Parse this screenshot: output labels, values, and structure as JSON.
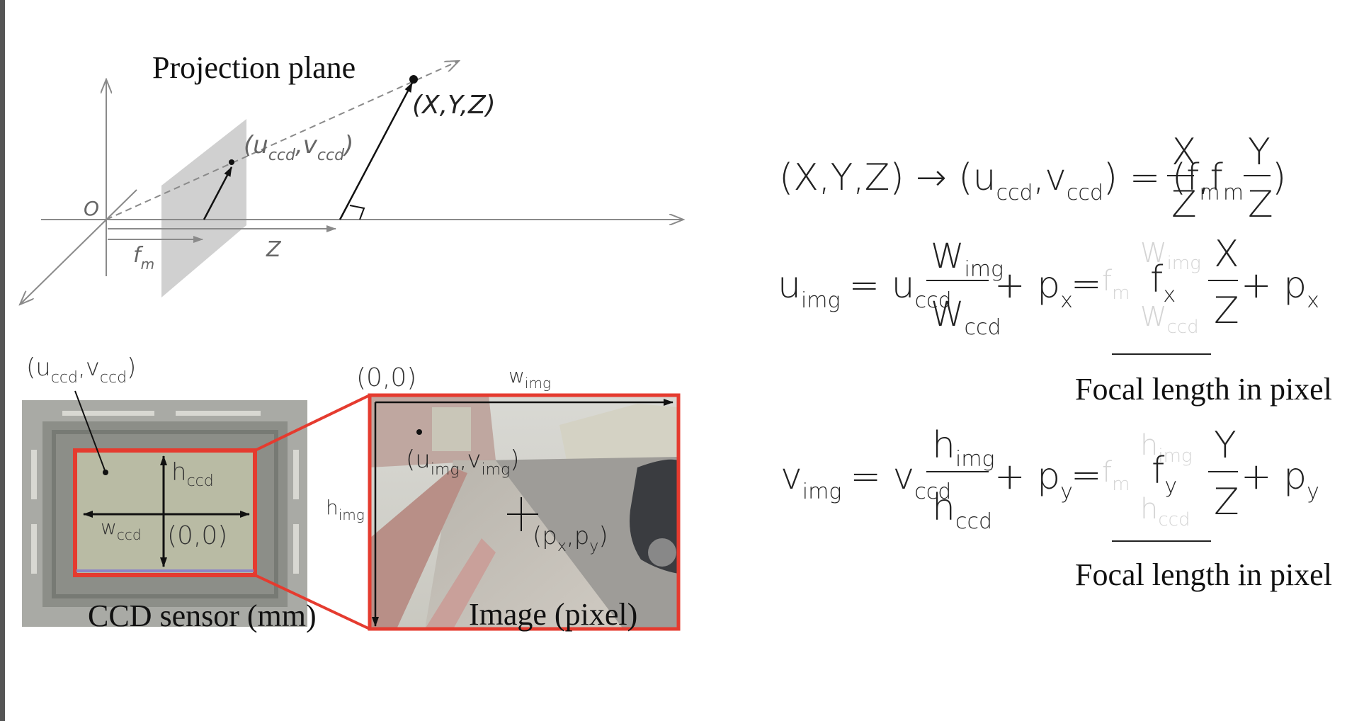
{
  "diagram": {
    "projection": {
      "title": "Projection plane",
      "origin_label": "O",
      "point_label": "(X,Y,Z)",
      "ccd_point_label": "(u",
      "ccd_u_sub": "ccd",
      "ccd_v": ",v",
      "ccd_v_sub": "ccd",
      "ccd_close": ")",
      "fm_label": "f",
      "fm_sub": "m",
      "z_label": "Z"
    },
    "ccd_sensor": {
      "corner_label": "(u",
      "corner_u_sub": "ccd",
      "corner_v": ",v",
      "corner_v_sub": "ccd",
      "corner_close": ")",
      "h_label": "h",
      "h_sub": "ccd",
      "w_label": "w",
      "w_sub": "ccd",
      "origin_label": "(0,0)",
      "caption": "CCD sensor (mm)"
    },
    "image": {
      "origin_label": "(0,0)",
      "w_label": "w",
      "w_sub": "img",
      "h_label": "h",
      "h_sub": "img",
      "point_label": "(u",
      "point_u_sub": "img",
      "point_v": ",v",
      "point_v_sub": "img",
      "point_close": ")",
      "pp_label": "(p",
      "pp_x_sub": "x",
      "pp_mid": ",p",
      "pp_y_sub": "y",
      "pp_close": ")",
      "caption": "Image (pixel)"
    },
    "equations": {
      "eq1_left": "(X,Y,Z) → (u",
      "eq1_sub1": "ccd",
      "eq1_mid": ",v",
      "eq1_sub2": "ccd",
      "eq1_eq": ") = (f",
      "eq1_fm_sub": "m",
      "eq1_X": "X",
      "eq1_Z1": "Z",
      "eq1_comma": ",f",
      "eq1_fm2_sub": "m",
      "eq1_Y": "Y",
      "eq1_Z2": "Z",
      "eq1_close": ")",
      "u_var": "u",
      "u_sub": "img",
      "u_eq": "= u",
      "u_ccd_sub": "ccd",
      "u_num": "W",
      "u_num_sub": "img",
      "u_den": "W",
      "u_den_sub": "ccd",
      "u_plus": "+ p",
      "u_p_sub": "x",
      "u_eq2": "=",
      "u_f": "f",
      "u_f_sub": "x",
      "u_X": "X",
      "u_Z": "Z",
      "u_plus2": "+ p",
      "u_p2_sub": "x",
      "v_var": "v",
      "v_sub": "img",
      "v_eq": "= v",
      "v_ccd_sub": "ccd",
      "v_num": "h",
      "v_num_sub": "img",
      "v_den": "h",
      "v_den_sub": "ccd",
      "v_plus": "+ p",
      "v_p_sub": "y",
      "v_eq2": "=",
      "v_f": "f",
      "v_f_sub": "y",
      "v_Y": "Y",
      "v_Z": "Z",
      "v_plus2": "+ p",
      "v_p2_sub": "y",
      "ghost_fm": "f",
      "ghost_m": "m",
      "ghost_W": "W",
      "ghost_img": "img",
      "ghost_ccd": "ccd",
      "ghost_h": "h",
      "caption1": "Focal length in pixel",
      "caption2": "Focal length in pixel"
    }
  }
}
